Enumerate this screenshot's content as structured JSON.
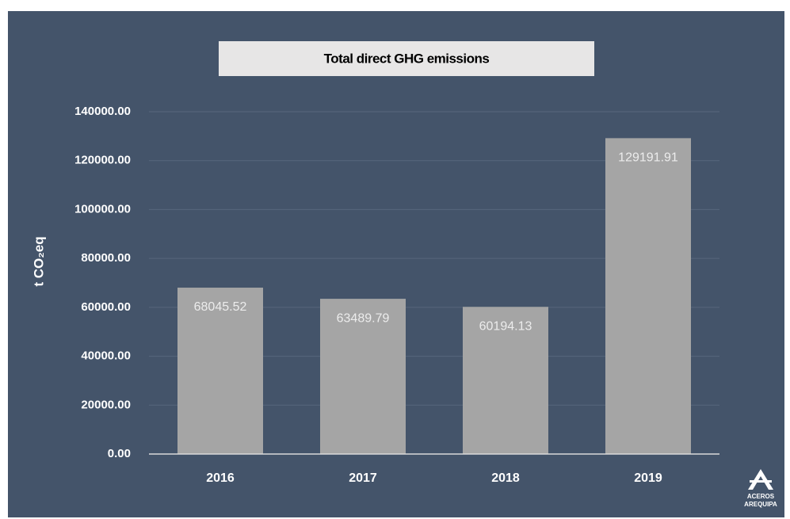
{
  "chart_data": {
    "type": "bar",
    "title": "Total direct GHG emissions",
    "y_label": "t CO₂eq",
    "categories": [
      "2016",
      "2017",
      "2018",
      "2019"
    ],
    "values": [
      68045.52,
      63489.79,
      60194.13,
      129191.91
    ],
    "color": "#a5a5a5",
    "ylim": [
      0,
      140000
    ],
    "yticks": [
      {
        "value": 0,
        "label": "0.00"
      },
      {
        "value": 20000,
        "label": "20000.00"
      },
      {
        "value": 40000,
        "label": "40000.00"
      },
      {
        "value": 60000,
        "label": "60000.00"
      },
      {
        "value": 80000,
        "label": "80000.00"
      },
      {
        "value": 100000,
        "label": "100000.00"
      },
      {
        "value": 120000,
        "label": "120000.00"
      },
      {
        "value": 140000,
        "label": "140000.00"
      }
    ],
    "grid": true
  },
  "logo": {
    "lines": [
      "ACEROS",
      "AREQUIPA"
    ]
  }
}
